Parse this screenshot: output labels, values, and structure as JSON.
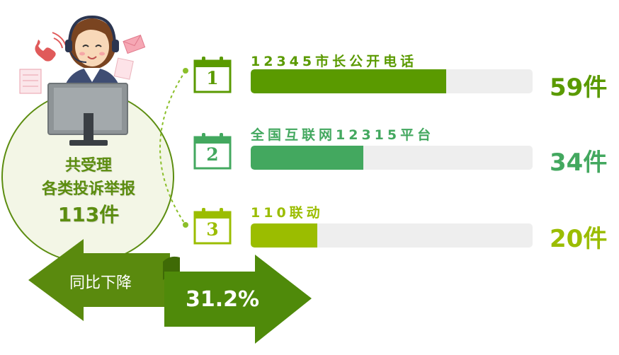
{
  "summary": {
    "line1": "共受理",
    "line2": "各类投诉举报",
    "line3": "113件"
  },
  "chart_data": {
    "type": "bar",
    "orientation": "horizontal",
    "categories": [
      "12345市长公开电话",
      "全国互联网12315平台",
      "110联动"
    ],
    "values": [
      59,
      34,
      20
    ],
    "value_labels": [
      "59件",
      "34件",
      "20件"
    ],
    "ranks": [
      "1",
      "2",
      "3"
    ],
    "colors": [
      "#5a9a00",
      "#43a85f",
      "#9bbd00"
    ],
    "xlim": [
      0,
      85
    ],
    "total": 113
  },
  "banner": {
    "label": "同比下降",
    "value": "31.2%",
    "arrow_left_color": "#5a8a0e",
    "arrow_right_color": "#5a8a0e"
  },
  "illustration": {
    "icons": [
      "customer-service-agent",
      "phone-icon",
      "envelope-icon",
      "document-icon",
      "computer-monitor"
    ]
  }
}
